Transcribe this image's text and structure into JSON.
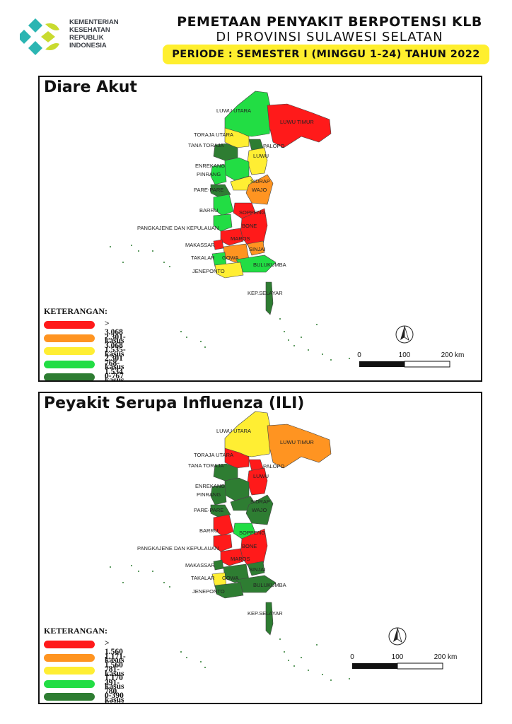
{
  "header": {
    "logo_lines": [
      "KEMENTERIAN",
      "KESEHATAN",
      "REPUBLIK",
      "INDONESIA"
    ],
    "title_line1": "PEMETAAN PENYAKIT BERPOTENSI KLB",
    "title_line2": "DI PROVINSI SULAWESI SELATAN",
    "period": "PERIODE : SEMESTER I (MINGGU 1-24) TAHUN 2022"
  },
  "colors": {
    "red": "#ff1a1a",
    "orange": "#ff9421",
    "yellow": "#ffee33",
    "light_green": "#22dd44",
    "dark_green": "#2e7d32",
    "header_highlight": "#ffef2e",
    "logo_teal": "#2bb5b2",
    "logo_lime": "#c9db2f"
  },
  "maps": [
    {
      "title": "Diare Akut",
      "legend_title": "KETERANGAN:",
      "legend": [
        {
          "label": "> 3.068 kasus",
          "color": "#ff1a1a"
        },
        {
          "label": "2.301-3.068 kasus",
          "color": "#ff9421"
        },
        {
          "label": "1.535-2.301 kasus",
          "color": "#ffee33"
        },
        {
          "label": "768-1.534 kasus",
          "color": "#22dd44"
        },
        {
          "label": "0-767 kasus",
          "color": "#2e7d32"
        }
      ],
      "regions": [
        {
          "name": "LUWU UTARA",
          "class": "768-1.534 kasus"
        },
        {
          "name": "LUWU TIMUR",
          "class": "> 3.068 kasus"
        },
        {
          "name": "TORAJA UTARA",
          "class": "1.535-2.301 kasus"
        },
        {
          "name": "TANA TORAJA",
          "class": "0-767 kasus"
        },
        {
          "name": "PALOPO",
          "class": "0-767 kasus"
        },
        {
          "name": "LUWU",
          "class": "1.535-2.301 kasus"
        },
        {
          "name": "ENREKANG",
          "class": "768-1.534 kasus"
        },
        {
          "name": "PINRANG",
          "class": "768-1.534 kasus"
        },
        {
          "name": "SIDRAP",
          "class": "1.535-2.301 kasus"
        },
        {
          "name": "WAJO",
          "class": "2.301-3.068 kasus"
        },
        {
          "name": "PARE-PARE",
          "class": "0-767 kasus"
        },
        {
          "name": "BARRU",
          "class": "768-1.534 kasus"
        },
        {
          "name": "SOPPENG",
          "class": "> 3.068 kasus"
        },
        {
          "name": "PANGKAJENE DAN KEPULAUAN",
          "class": "768-1.534 kasus"
        },
        {
          "name": "BONE",
          "class": "> 3.068 kasus"
        },
        {
          "name": "MAROS",
          "class": "> 3.068 kasus"
        },
        {
          "name": "MAKASSAR",
          "class": "> 3.068 kasus"
        },
        {
          "name": "SINJAI",
          "class": "2.301-3.068 kasus"
        },
        {
          "name": "GOWA",
          "class": "2.301-3.068 kasus"
        },
        {
          "name": "TAKALAR",
          "class": "768-1.534 kasus"
        },
        {
          "name": "BULUKUMBA",
          "class": "768-1.534 kasus"
        },
        {
          "name": "JENEPONTO",
          "class": "1.535-2.301 kasus"
        },
        {
          "name": "KEP.SELAYAR",
          "class": "0-767 kasus"
        }
      ],
      "scale": {
        "ticks": [
          "0",
          "100",
          "200 km"
        ]
      }
    },
    {
      "title": "Peyakit Serupa Influenza (ILI)",
      "legend_title": "KETERANGAN:",
      "legend": [
        {
          "label": "> 1.560 kasus",
          "color": "#ff1a1a"
        },
        {
          "label": "1.171-1.560 kasus",
          "color": "#ff9421"
        },
        {
          "label": "781-1.170 kasus",
          "color": "#ffee33"
        },
        {
          "label": "391-780 kasus",
          "color": "#22dd44"
        },
        {
          "label": "0-390 kasus",
          "color": "#2e7d32"
        }
      ],
      "regions": [
        {
          "name": "LUWU UTARA",
          "class": "781-1.170 kasus"
        },
        {
          "name": "LUWU TIMUR",
          "class": "1.171-1.560 kasus"
        },
        {
          "name": "TORAJA UTARA",
          "class": "> 1.560 kasus"
        },
        {
          "name": "TANA TORAJA",
          "class": "0-390 kasus"
        },
        {
          "name": "PALOPO",
          "class": "> 1.560 kasus"
        },
        {
          "name": "LUWU",
          "class": "> 1.560 kasus"
        },
        {
          "name": "ENREKANG",
          "class": "0-390 kasus"
        },
        {
          "name": "PINRANG",
          "class": "0-390 kasus"
        },
        {
          "name": "SIDRAP",
          "class": "0-390 kasus"
        },
        {
          "name": "WAJO",
          "class": "0-390 kasus"
        },
        {
          "name": "PARE-PARE",
          "class": "0-390 kasus"
        },
        {
          "name": "BARRU",
          "class": "> 1.560 kasus"
        },
        {
          "name": "SOPPENG",
          "class": "391-780 kasus"
        },
        {
          "name": "PANGKAJENE DAN KEPULAUAN",
          "class": "> 1.560 kasus"
        },
        {
          "name": "BONE",
          "class": "> 1.560 kasus"
        },
        {
          "name": "MAROS",
          "class": "> 1.560 kasus"
        },
        {
          "name": "MAKASSAR",
          "class": "0-390 kasus"
        },
        {
          "name": "SINJAI",
          "class": "0-390 kasus"
        },
        {
          "name": "GOWA",
          "class": "0-390 kasus"
        },
        {
          "name": "TAKALAR",
          "class": "781-1.170 kasus"
        },
        {
          "name": "BULUKUMBA",
          "class": "0-390 kasus"
        },
        {
          "name": "JENEPONTO",
          "class": "0-390 kasus"
        },
        {
          "name": "KEP.SELAYAR",
          "class": "0-390 kasus"
        }
      ],
      "scale": {
        "ticks": [
          "0",
          "100",
          "200 km"
        ]
      }
    }
  ]
}
